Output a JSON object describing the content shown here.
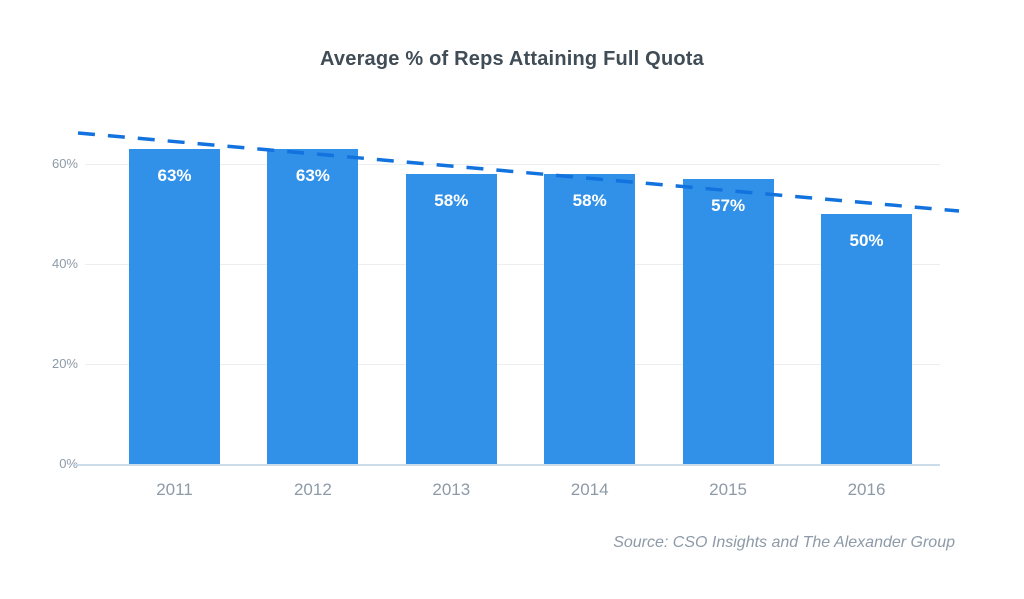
{
  "chart_data": {
    "type": "bar",
    "title": "Average % of Reps Attaining Full Quota",
    "categories": [
      "2011",
      "2012",
      "2013",
      "2014",
      "2015",
      "2016"
    ],
    "values": [
      63,
      63,
      58,
      58,
      57,
      50
    ],
    "value_labels": [
      "63%",
      "63%",
      "58%",
      "58%",
      "57%",
      "50%"
    ],
    "yticks": {
      "values": [
        0,
        20,
        40,
        60
      ],
      "labels": [
        "0%",
        "20%",
        "40%",
        "60%"
      ]
    },
    "ylim": [
      0,
      67
    ],
    "grid": "horizontal",
    "legend": "none",
    "trendline": {
      "style": "dashed",
      "start_value": 66.2,
      "end_value": 50.6
    },
    "source": "Source: CSO Insights and The Alexander Group",
    "colors": {
      "bar": "#3191E8",
      "trend": "#1272DE"
    }
  }
}
